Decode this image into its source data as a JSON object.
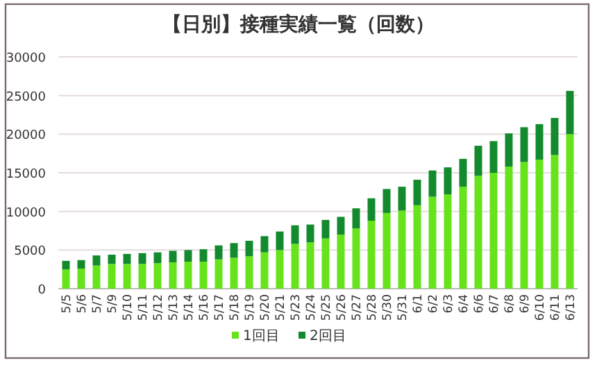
{
  "chart_data": {
    "type": "bar",
    "title": "【日別】接種実績一覧（回数）",
    "stacked": true,
    "categories": [
      "5/5",
      "5/6",
      "5/7",
      "5/9",
      "5/10",
      "5/11",
      "5/12",
      "5/13",
      "5/14",
      "5/16",
      "5/17",
      "5/18",
      "5/19",
      "5/20",
      "5/21",
      "5/23",
      "5/24",
      "5/25",
      "5/26",
      "5/27",
      "5/28",
      "5/30",
      "5/31",
      "6/1",
      "6/2",
      "6/3",
      "6/4",
      "6/6",
      "6/7",
      "6/8",
      "6/9",
      "6/10",
      "6/11",
      "6/13"
    ],
    "series": [
      {
        "name": "1回目",
        "color": "#66e31a",
        "values": [
          2500,
          2600,
          3000,
          3200,
          3200,
          3200,
          3300,
          3400,
          3500,
          3500,
          3800,
          4000,
          4200,
          4700,
          5000,
          5800,
          6000,
          6500,
          7000,
          7800,
          8800,
          9800,
          10100,
          10800,
          11900,
          12200,
          13200,
          14600,
          15000,
          15800,
          16400,
          16700,
          17300,
          20000
        ]
      },
      {
        "name": "2回目",
        "color": "#138a2e",
        "values": [
          1100,
          1100,
          1300,
          1200,
          1300,
          1400,
          1400,
          1500,
          1500,
          1600,
          1800,
          1900,
          2000,
          2100,
          2400,
          2400,
          2300,
          2400,
          2300,
          2600,
          2900,
          3100,
          3100,
          3300,
          3400,
          3500,
          3600,
          3900,
          4100,
          4300,
          4500,
          4600,
          4800,
          5600
        ]
      }
    ],
    "ylim": [
      0,
      30000
    ],
    "yticks": [
      0,
      5000,
      10000,
      15000,
      20000,
      25000,
      30000
    ],
    "grid": "y",
    "legend": "bottom"
  }
}
